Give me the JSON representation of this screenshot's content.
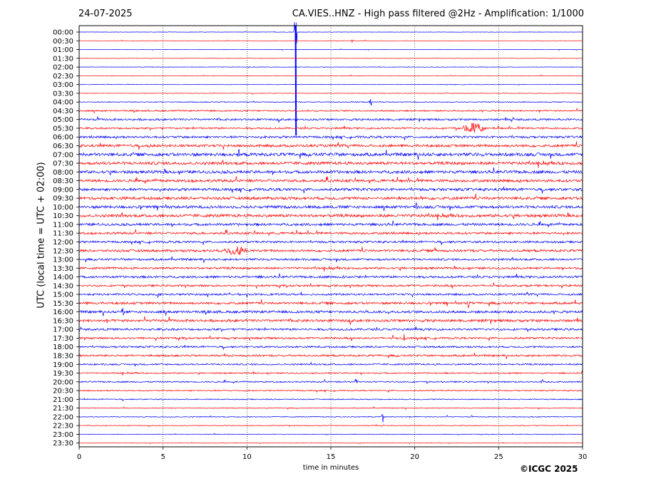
{
  "header": {
    "date": "24-07-2025",
    "title": "CA.VIES..HNZ - High pass filtered @2Hz - Amplification: 1/1000"
  },
  "footer": {
    "copyright": "©ICGC 2025"
  },
  "chart_data": {
    "type": "line",
    "xlabel": "time in minutes",
    "ylabel": "UTC (local time = UTC + 02:00)",
    "xlim": [
      0,
      30
    ],
    "x_ticks": [
      "0",
      "5",
      "10",
      "15",
      "20",
      "25",
      "30"
    ],
    "x_tick_values": [
      0,
      5,
      10,
      15,
      20,
      25,
      30
    ],
    "grid": "vertical dotted lines at 5-minute intervals",
    "colors": {
      "odd_rows": "#ff0000",
      "even_rows": "#0000ff"
    },
    "rows": [
      "00:00",
      "00:30",
      "01:00",
      "01:30",
      "02:00",
      "02:30",
      "03:00",
      "03:30",
      "04:00",
      "04:30",
      "05:00",
      "05:30",
      "06:00",
      "06:30",
      "07:00",
      "07:30",
      "08:00",
      "08:30",
      "09:00",
      "09:30",
      "10:00",
      "10:30",
      "11:00",
      "11:30",
      "12:00",
      "12:30",
      "13:00",
      "13:30",
      "14:00",
      "14:30",
      "15:00",
      "15:30",
      "16:00",
      "16:30",
      "17:00",
      "17:30",
      "18:00",
      "18:30",
      "19:00",
      "19:30",
      "20:00",
      "20:30",
      "21:00",
      "21:30",
      "22:00",
      "22:30",
      "23:00",
      "23:30"
    ],
    "noise_level": [
      0.3,
      0.3,
      0.3,
      0.3,
      0.3,
      0.3,
      0.3,
      0.4,
      0.6,
      1.0,
      1.3,
      1.2,
      1.5,
      1.8,
      2.2,
      2.0,
      2.0,
      1.8,
      1.8,
      1.9,
      1.9,
      2.0,
      1.7,
      1.5,
      1.4,
      1.6,
      1.4,
      1.4,
      1.5,
      1.3,
      1.3,
      1.6,
      1.7,
      1.7,
      1.4,
      1.3,
      1.2,
      1.3,
      1.1,
      0.9,
      0.9,
      0.8,
      0.7,
      0.6,
      0.6,
      0.5,
      0.4,
      0.3
    ],
    "events": [
      {
        "row": "00:00",
        "minute": 12.9,
        "amplitude": 40,
        "note": "large spike"
      },
      {
        "row": "00:30",
        "minute": 16.3,
        "amplitude": 4
      },
      {
        "row": "04:00",
        "minute": 17.4,
        "amplitude": 8
      },
      {
        "row": "05:30",
        "minute": 23.5,
        "amplitude": 9,
        "note": "burst 22.5-24.5"
      },
      {
        "row": "06:30",
        "minute": 4.2,
        "amplitude": 6
      },
      {
        "row": "07:00",
        "minute": 9.5,
        "amplitude": 7
      },
      {
        "row": "09:30",
        "minute": 20.3,
        "amplitude": 8
      },
      {
        "row": "10:00",
        "minute": 20.1,
        "amplitude": 7
      },
      {
        "row": "12:30",
        "minute": 9.3,
        "amplitude": 7,
        "note": "burst 9.0-10.0"
      },
      {
        "row": "12:30",
        "minute": 21.2,
        "amplitude": 8
      },
      {
        "row": "14:00",
        "minute": 15.8,
        "amplitude": 7
      },
      {
        "row": "15:30",
        "minute": 23.2,
        "amplitude": 9
      },
      {
        "row": "16:00",
        "minute": 2.6,
        "amplitude": 7
      },
      {
        "row": "17:30",
        "minute": 19.4,
        "amplitude": 6
      },
      {
        "row": "20:00",
        "minute": 16.5,
        "amplitude": 7
      },
      {
        "row": "20:00",
        "minute": 27.6,
        "amplitude": 6
      },
      {
        "row": "22:00",
        "minute": 18.1,
        "amplitude": 8
      }
    ]
  }
}
